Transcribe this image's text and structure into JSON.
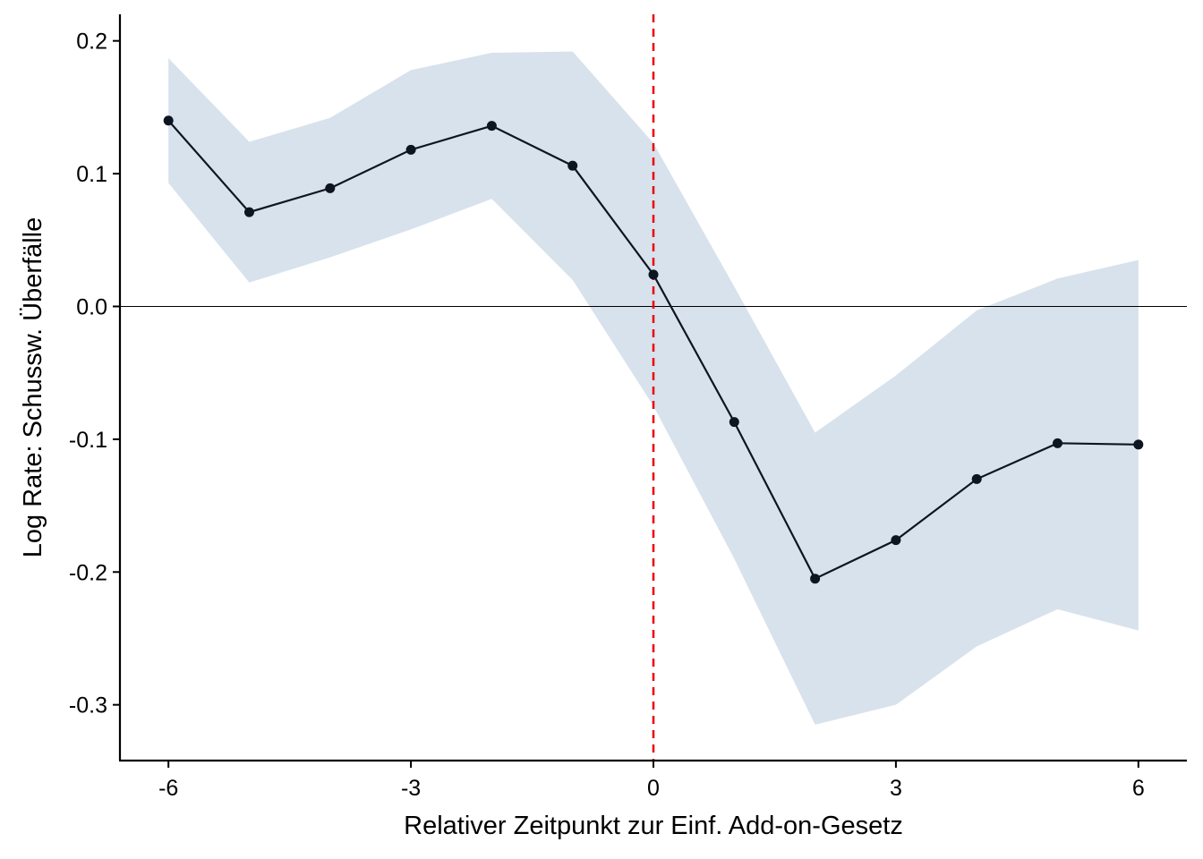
{
  "chart_data": {
    "type": "line",
    "title": "",
    "xlabel": "Relativer Zeitpunkt zur Einf. Add-on-Gesetz",
    "ylabel": "Log Rate: Schussw. Überfälle",
    "xlim": [
      -6.6,
      6.6
    ],
    "ylim": [
      -0.342,
      0.22
    ],
    "x_ticks": [
      -6,
      -3,
      0,
      3,
      6
    ],
    "x_tick_labels": [
      "-6",
      "-3",
      "0",
      "3",
      "6"
    ],
    "y_ticks": [
      0.2,
      0.1,
      0.0,
      -0.1,
      -0.2,
      -0.3
    ],
    "y_tick_labels": [
      "0.2",
      "0.1",
      "0.0",
      "-0.1",
      "-0.2",
      "-0.3"
    ],
    "grid": false,
    "legend": "none",
    "reference_lines": {
      "horizontal": {
        "y": 0.0,
        "color": "#000000",
        "style": "solid"
      },
      "vertical": {
        "x": 0,
        "color": "#e8000b",
        "style": "dashed"
      }
    },
    "series": [
      {
        "x": [
          -6,
          -5,
          -4,
          -3,
          -2,
          -1,
          0,
          1,
          2,
          3,
          4,
          5,
          6
        ],
        "y": [
          0.14,
          0.071,
          0.089,
          0.118,
          0.136,
          0.106,
          0.024,
          -0.087,
          -0.205,
          -0.176,
          -0.13,
          -0.103,
          -0.104
        ],
        "ci_lower": [
          0.093,
          0.018,
          0.037,
          0.058,
          0.081,
          0.02,
          -0.075,
          -0.19,
          -0.315,
          -0.3,
          -0.256,
          -0.228,
          -0.244
        ],
        "ci_upper": [
          0.187,
          0.124,
          0.142,
          0.178,
          0.191,
          0.192,
          0.123,
          0.015,
          -0.095,
          -0.052,
          -0.003,
          0.021,
          0.035
        ],
        "line_color": "#0d1520",
        "band_color": "#d8e2ec"
      }
    ]
  }
}
